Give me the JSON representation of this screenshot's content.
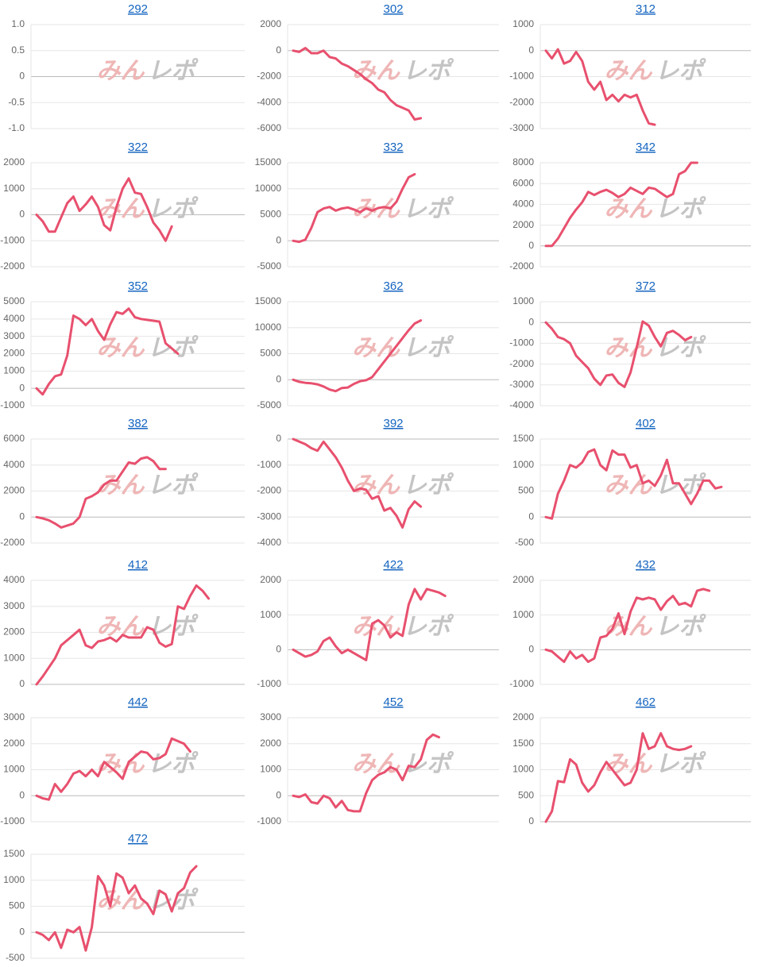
{
  "watermark": [
    "みん",
    "レポ"
  ],
  "chart_data": [
    {
      "type": "line",
      "title": "292",
      "color": "#e8506e",
      "grid": true,
      "ylim": [
        -1,
        1
      ],
      "yticks": [
        {
          "value": 1,
          "label": "1.0"
        },
        0.5,
        0,
        -0.5,
        {
          "value": -1,
          "label": "-1.0"
        }
      ],
      "values": []
    },
    {
      "type": "line",
      "title": "302",
      "color": "#e8506e",
      "grid": true,
      "ylim": [
        -6000,
        2000
      ],
      "yticks": [
        2000,
        0,
        -2000,
        -4000,
        -6000
      ],
      "values": [
        0,
        -100,
        200,
        -200,
        -200,
        0,
        -500,
        -600,
        -1000,
        -1200,
        -1500,
        -1800,
        -2200,
        -2500,
        -3000,
        -3200,
        -3800,
        -4200,
        -4400,
        -4600,
        -5300,
        -5200
      ]
    },
    {
      "type": "line",
      "title": "312",
      "color": "#e8506e",
      "grid": true,
      "ylim": [
        -3000,
        1000
      ],
      "yticks": [
        1000,
        0,
        -1000,
        -2000,
        -3000
      ],
      "values": [
        0,
        -300,
        50,
        -500,
        -400,
        -50,
        -400,
        -1200,
        -1500,
        -1200,
        -1900,
        -1700,
        -1950,
        -1700,
        -1800,
        -1700,
        -2300,
        -2800,
        -2850
      ]
    },
    {
      "type": "line",
      "title": "322",
      "color": "#e8506e",
      "grid": true,
      "ylim": [
        -2000,
        2000
      ],
      "yticks": [
        2000,
        1000,
        0,
        -1000,
        -2000
      ],
      "values": [
        0,
        -250,
        -650,
        -650,
        -100,
        450,
        700,
        150,
        400,
        700,
        300,
        -400,
        -600,
        300,
        1000,
        1400,
        850,
        800,
        300,
        -300,
        -600,
        -1000,
        -450
      ]
    },
    {
      "type": "line",
      "title": "332",
      "color": "#e8506e",
      "grid": true,
      "ylim": [
        -5000,
        15000
      ],
      "yticks": [
        15000,
        10000,
        5000,
        0,
        -5000
      ],
      "values": [
        0,
        -200,
        200,
        2500,
        5500,
        6200,
        6500,
        5800,
        6200,
        6400,
        6000,
        5500,
        6200,
        5800,
        6300,
        6500,
        6200,
        7500,
        10000,
        12200,
        12800
      ]
    },
    {
      "type": "line",
      "title": "342",
      "color": "#e8506e",
      "grid": true,
      "ylim": [
        -2000,
        8000
      ],
      "yticks": [
        8000,
        6000,
        4000,
        2000,
        0,
        -2000
      ],
      "values": [
        0,
        0,
        700,
        1700,
        2700,
        3500,
        4200,
        5200,
        4900,
        5200,
        5400,
        5100,
        4700,
        5000,
        5600,
        5300,
        5000,
        5600,
        5500,
        5100,
        4700,
        5000,
        6900,
        7200,
        8000,
        8000
      ]
    },
    {
      "type": "line",
      "title": "352",
      "color": "#e8506e",
      "grid": true,
      "ylim": [
        -1000,
        5000
      ],
      "yticks": [
        5000,
        4000,
        3000,
        2000,
        1000,
        0,
        -1000
      ],
      "values": [
        0,
        -350,
        250,
        700,
        800,
        1900,
        4200,
        4000,
        3650,
        4000,
        3300,
        2800,
        3700,
        4400,
        4300,
        4600,
        4100,
        4000,
        3950,
        3900,
        3850,
        2600,
        2300,
        2000
      ]
    },
    {
      "type": "line",
      "title": "362",
      "color": "#e8506e",
      "grid": true,
      "ylim": [
        -5000,
        15000
      ],
      "yticks": [
        15000,
        10000,
        5000,
        0,
        -5000
      ],
      "values": [
        0,
        -400,
        -600,
        -700,
        -900,
        -1300,
        -1900,
        -2200,
        -1600,
        -1500,
        -800,
        -300,
        -100,
        500,
        2000,
        3500,
        5000,
        6500,
        8000,
        9500,
        10800,
        11400
      ]
    },
    {
      "type": "line",
      "title": "372",
      "color": "#e8506e",
      "grid": true,
      "ylim": [
        -4000,
        1000
      ],
      "yticks": [
        1000,
        0,
        -1000,
        -2000,
        -3000,
        -4000
      ],
      "values": [
        0,
        -300,
        -700,
        -800,
        -1000,
        -1600,
        -1900,
        -2200,
        -2700,
        -3000,
        -2550,
        -2500,
        -2900,
        -3100,
        -2400,
        -1200,
        50,
        -150,
        -700,
        -1150,
        -500,
        -400,
        -600,
        -850,
        -700
      ]
    },
    {
      "type": "line",
      "title": "382",
      "color": "#e8506e",
      "grid": true,
      "ylim": [
        -2000,
        6000
      ],
      "yticks": [
        6000,
        4000,
        2000,
        0,
        -2000
      ],
      "values": [
        0,
        -100,
        -250,
        -500,
        -800,
        -650,
        -500,
        0,
        1400,
        1600,
        1900,
        2500,
        2800,
        2800,
        3500,
        4200,
        4100,
        4500,
        4600,
        4300,
        3700,
        3700
      ]
    },
    {
      "type": "line",
      "title": "392",
      "color": "#e8506e",
      "grid": true,
      "ylim": [
        -4000,
        0
      ],
      "yticks": [
        0,
        -1000,
        -2000,
        -3000,
        -4000
      ],
      "values": [
        0,
        -100,
        -200,
        -350,
        -450,
        -100,
        -400,
        -700,
        -1100,
        -1600,
        -2000,
        -1900,
        -1950,
        -2300,
        -2200,
        -2750,
        -2650,
        -2950,
        -3400,
        -2700,
        -2400,
        -2600
      ]
    },
    {
      "type": "line",
      "title": "402",
      "color": "#e8506e",
      "grid": true,
      "ylim": [
        -500,
        1500
      ],
      "yticks": [
        1500,
        1000,
        500,
        0,
        -500
      ],
      "values": [
        0,
        -30,
        450,
        700,
        1000,
        950,
        1050,
        1250,
        1300,
        1000,
        900,
        1280,
        1200,
        1200,
        950,
        1000,
        650,
        700,
        600,
        800,
        1100,
        650,
        650,
        450,
        250,
        450,
        700,
        700,
        550,
        580
      ]
    },
    {
      "type": "line",
      "title": "412",
      "color": "#e8506e",
      "grid": true,
      "ylim": [
        0,
        4000
      ],
      "yticks": [
        4000,
        3000,
        2000,
        1000,
        0
      ],
      "values": [
        0,
        300,
        650,
        1000,
        1500,
        1700,
        1900,
        2100,
        1500,
        1400,
        1650,
        1700,
        1800,
        1650,
        1900,
        1800,
        1800,
        1800,
        2200,
        2100,
        1600,
        1450,
        1550,
        3000,
        2900,
        3400,
        3800,
        3600,
        3300
      ]
    },
    {
      "type": "line",
      "title": "422",
      "color": "#e8506e",
      "grid": true,
      "ylim": [
        -1000,
        2000
      ],
      "yticks": [
        2000,
        1000,
        0,
        -1000
      ],
      "values": [
        0,
        -100,
        -200,
        -150,
        -50,
        250,
        350,
        100,
        -100,
        0,
        -100,
        -200,
        -300,
        750,
        850,
        700,
        350,
        500,
        400,
        1300,
        1750,
        1450,
        1750,
        1700,
        1650,
        1550
      ]
    },
    {
      "type": "line",
      "title": "432",
      "color": "#e8506e",
      "grid": true,
      "ylim": [
        -1000,
        2000
      ],
      "yticks": [
        2000,
        1000,
        0,
        -1000
      ],
      "values": [
        0,
        -50,
        -200,
        -350,
        -50,
        -250,
        -150,
        -350,
        -250,
        350,
        400,
        600,
        1050,
        450,
        1100,
        1500,
        1450,
        1500,
        1450,
        1150,
        1400,
        1550,
        1300,
        1350,
        1250,
        1700,
        1750,
        1700
      ]
    },
    {
      "type": "line",
      "title": "442",
      "color": "#e8506e",
      "grid": true,
      "ylim": [
        -1000,
        3000
      ],
      "yticks": [
        3000,
        2000,
        1000,
        0,
        -1000
      ],
      "values": [
        0,
        -100,
        -150,
        450,
        150,
        450,
        850,
        950,
        750,
        1000,
        750,
        1300,
        1100,
        900,
        650,
        1300,
        1500,
        1700,
        1650,
        1400,
        1450,
        1600,
        2200,
        2100,
        2000,
        1700
      ]
    },
    {
      "type": "line",
      "title": "452",
      "color": "#e8506e",
      "grid": true,
      "ylim": [
        -1000,
        3000
      ],
      "yticks": [
        3000,
        2000,
        1000,
        0,
        -1000
      ],
      "values": [
        0,
        -50,
        50,
        -250,
        -300,
        0,
        -100,
        -450,
        -200,
        -550,
        -600,
        -600,
        100,
        600,
        800,
        900,
        1100,
        1000,
        600,
        1150,
        1100,
        1400,
        2150,
        2350,
        2250
      ]
    },
    {
      "type": "line",
      "title": "462",
      "color": "#e8506e",
      "grid": true,
      "ylim": [
        0,
        2000
      ],
      "yticks": [
        2000,
        1500,
        1000,
        500,
        0
      ],
      "values": [
        0,
        200,
        780,
        760,
        1200,
        1100,
        750,
        580,
        700,
        950,
        1150,
        1000,
        850,
        700,
        750,
        1000,
        1700,
        1400,
        1450,
        1700,
        1450,
        1400,
        1380,
        1400,
        1450
      ]
    },
    {
      "type": "line",
      "title": "472",
      "color": "#e8506e",
      "grid": true,
      "ylim": [
        -500,
        1500
      ],
      "yticks": [
        1500,
        1000,
        500,
        0,
        -500
      ],
      "values": [
        0,
        -50,
        -150,
        0,
        -300,
        50,
        0,
        100,
        -350,
        100,
        1080,
        900,
        500,
        1130,
        1050,
        750,
        900,
        650,
        550,
        350,
        800,
        730,
        400,
        750,
        850,
        1150,
        1270
      ]
    }
  ]
}
